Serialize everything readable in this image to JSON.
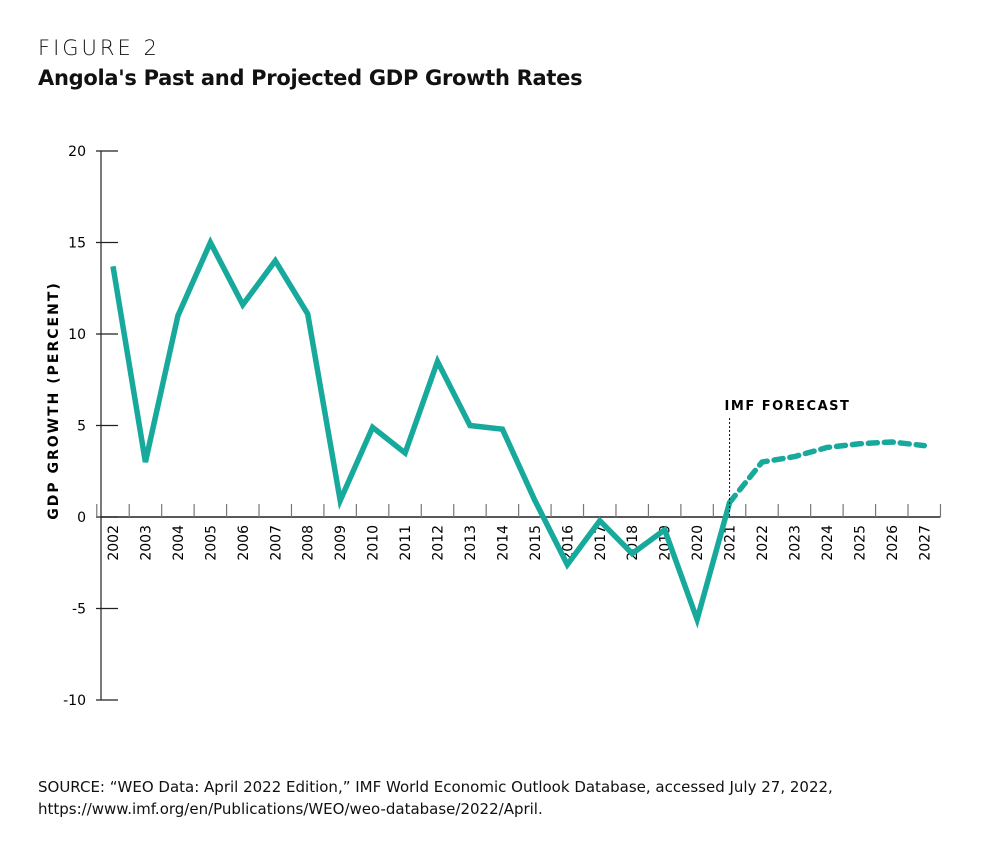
{
  "figure_label": "FIGURE 2",
  "source_lines": [
    "SOURCE: “WEO Data: April 2022 Edition,” IMF World Economic Outlook Database, accessed July 27, 2022,",
    "https://www.imf.org/en/Publications/WEO/weo-database/2022/April."
  ],
  "chart_data": {
    "type": "line",
    "title": "Angola's Past and Projected GDP Growth Rates",
    "xlabel": "",
    "ylabel": "GDP GROWTH (PERCENT)",
    "ylim": [
      -10,
      20
    ],
    "yticks": [
      20,
      15,
      10,
      5,
      0,
      -5,
      -10
    ],
    "x": [
      "2002",
      "2003",
      "2004",
      "2005",
      "2006",
      "2007",
      "2008",
      "2009",
      "2010",
      "2011",
      "2012",
      "2013",
      "2014",
      "2015",
      "2016",
      "2017",
      "2018",
      "2019",
      "2020",
      "2021",
      "2022",
      "2023",
      "2024",
      "2025",
      "2026",
      "2027"
    ],
    "values": [
      13.7,
      3.0,
      11.0,
      15.0,
      11.6,
      14.0,
      11.1,
      0.9,
      4.9,
      3.5,
      8.5,
      5.0,
      4.8,
      0.9,
      -2.6,
      -0.2,
      -2.0,
      -0.7,
      -5.6,
      0.8,
      3.0,
      3.3,
      3.8,
      4.0,
      4.1,
      3.9
    ],
    "forecast_start": "2021",
    "annotation": "IMF FORECAST",
    "line_color": "#17a99b",
    "grid": false
  }
}
